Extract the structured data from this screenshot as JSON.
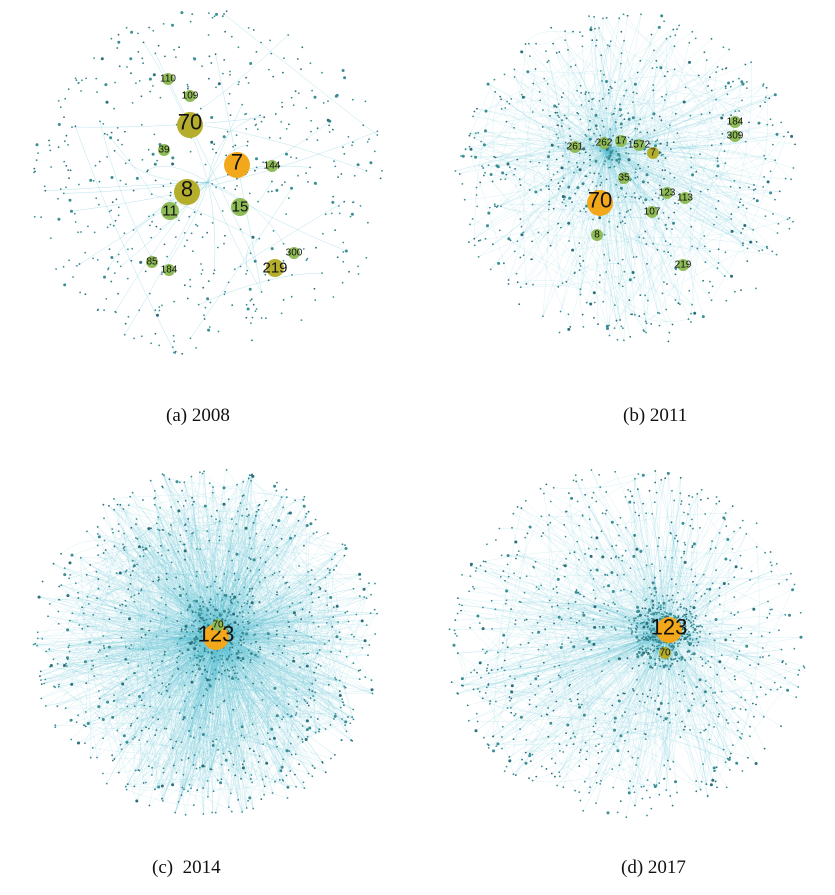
{
  "colors": {
    "edge": "#5bbfd1",
    "dot": "#3a8f95",
    "dot_dark": "#2b6f7a",
    "hub_orange": "#f2a81a",
    "hub_olive": "#b5ad2c",
    "hub_green": "#8fbc57"
  },
  "panels": [
    {
      "id": "a",
      "caption": "(a) 2008",
      "density": "sparse",
      "hubs": [
        {
          "label": "70",
          "size": "large",
          "color": "hub_olive"
        },
        {
          "label": "7",
          "size": "large",
          "color": "hub_orange"
        },
        {
          "label": "8",
          "size": "large",
          "color": "hub_olive"
        },
        {
          "label": "219",
          "size": "medium",
          "color": "hub_olive"
        },
        {
          "label": "11",
          "size": "medium",
          "color": "hub_green"
        },
        {
          "label": "15",
          "size": "medium",
          "color": "hub_green"
        },
        {
          "label": "109",
          "size": "small",
          "color": "hub_green"
        },
        {
          "label": "110",
          "size": "small",
          "color": "hub_green"
        },
        {
          "label": "144",
          "size": "small",
          "color": "hub_green"
        },
        {
          "label": "300",
          "size": "small",
          "color": "hub_green"
        },
        {
          "label": "85",
          "size": "small",
          "color": "hub_green"
        },
        {
          "label": "184",
          "size": "small",
          "color": "hub_green"
        },
        {
          "label": "39",
          "size": "small",
          "color": "hub_green"
        }
      ]
    },
    {
      "id": "b",
      "caption": "(b) 2011",
      "density": "medium",
      "hubs": [
        {
          "label": "70",
          "size": "large",
          "color": "hub_orange"
        },
        {
          "label": "7",
          "size": "small",
          "color": "hub_olive"
        },
        {
          "label": "261",
          "size": "small",
          "color": "hub_green"
        },
        {
          "label": "262",
          "size": "small",
          "color": "hub_green"
        },
        {
          "label": "17",
          "size": "small",
          "color": "hub_green"
        },
        {
          "label": "1572",
          "size": "small",
          "color": "hub_green"
        },
        {
          "label": "123",
          "size": "small",
          "color": "hub_green"
        },
        {
          "label": "107",
          "size": "small",
          "color": "hub_green"
        },
        {
          "label": "113",
          "size": "small",
          "color": "hub_green"
        },
        {
          "label": "35",
          "size": "small",
          "color": "hub_green"
        },
        {
          "label": "8",
          "size": "small",
          "color": "hub_green"
        },
        {
          "label": "184",
          "size": "small",
          "color": "hub_green"
        },
        {
          "label": "309",
          "size": "small",
          "color": "hub_green"
        },
        {
          "label": "219",
          "size": "small",
          "color": "hub_green"
        }
      ]
    },
    {
      "id": "c",
      "caption": "(c)  2014",
      "density": "dense",
      "hubs": [
        {
          "label": "123",
          "size": "large",
          "color": "hub_orange"
        },
        {
          "label": "70",
          "size": "small",
          "color": "hub_green"
        }
      ]
    },
    {
      "id": "d",
      "caption": "(d) 2017",
      "density": "dense-core",
      "hubs": [
        {
          "label": "123",
          "size": "large",
          "color": "hub_orange"
        },
        {
          "label": "70",
          "size": "small",
          "color": "hub_olive"
        }
      ]
    }
  ]
}
